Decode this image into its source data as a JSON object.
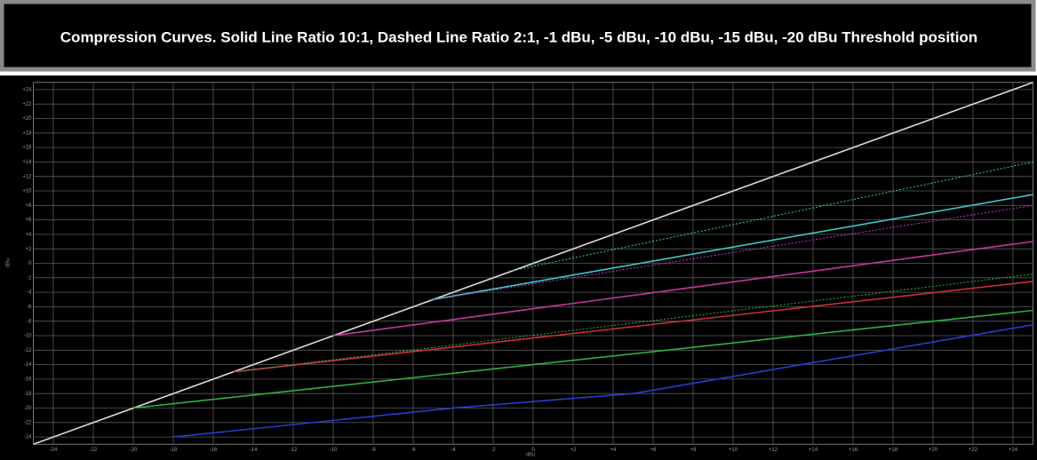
{
  "chart_data": {
    "type": "line",
    "title": "Compression Curves. Solid Line Ratio 10:1, Dashed Line Ratio 2:1, -1 dBu, -5 dBu, -10 dBu, -15 dBu, -20 dBu Threshold position",
    "x_label": "dBu",
    "y_label": "dBu",
    "xlim": [
      -25,
      25
    ],
    "ylim": [
      -25,
      25
    ],
    "grid": true,
    "xticks": [
      -24,
      -22,
      -20,
      -18,
      -16,
      -14,
      -12,
      -10,
      -8,
      -6,
      -4,
      -2,
      0,
      {
        "value": 2,
        "label": "+2"
      },
      {
        "value": 4,
        "label": "+4"
      },
      {
        "value": 6,
        "label": "+6"
      },
      {
        "value": 8,
        "label": "+8"
      },
      {
        "value": 10,
        "label": "+10"
      },
      {
        "value": 12,
        "label": "+12"
      },
      {
        "value": 14,
        "label": "+14"
      },
      {
        "value": 16,
        "label": "+16"
      },
      {
        "value": 18,
        "label": "+18"
      },
      {
        "value": 20,
        "label": "+20"
      },
      {
        "value": 22,
        "label": "+22"
      },
      {
        "value": 24,
        "label": "+24"
      }
    ],
    "yticks": [
      -24,
      -22,
      -20,
      -18,
      -16,
      -14,
      -12,
      -10,
      -8,
      -6,
      -4,
      -2,
      0,
      {
        "value": 2,
        "label": "+2"
      },
      {
        "value": 4,
        "label": "+4"
      },
      {
        "value": 6,
        "label": "+6"
      },
      {
        "value": 8,
        "label": "+8"
      },
      {
        "value": 10,
        "label": "+10"
      },
      {
        "value": 12,
        "label": "+12"
      },
      {
        "value": 14,
        "label": "+14"
      },
      {
        "value": 16,
        "label": "+16"
      },
      {
        "value": 18,
        "label": "+18"
      },
      {
        "value": 20,
        "label": "+20"
      },
      {
        "value": 22,
        "label": "+22"
      },
      {
        "value": 24,
        "label": "+24"
      }
    ],
    "series": [
      {
        "color": "#d8d8d8",
        "dashed": false,
        "x": [
          -25,
          25
        ],
        "values": [
          -25,
          25
        ]
      },
      {
        "color": "#3fc6c8",
        "dashed": true,
        "x": [
          -1,
          25
        ],
        "values": [
          -1,
          14
        ]
      },
      {
        "color": "#3fc6c8",
        "dashed": false,
        "x": [
          -5,
          25
        ],
        "values": [
          -5,
          9.5
        ]
      },
      {
        "color": "#c03ad0",
        "dashed": true,
        "x": [
          -5,
          25
        ],
        "values": [
          -5,
          8
        ]
      },
      {
        "color": "#c03ad0",
        "dashed": false,
        "x": [
          -10,
          25
        ],
        "values": [
          -10,
          3
        ]
      },
      {
        "color": "#d0303c",
        "dashed": true,
        "x": [
          -10,
          25
        ],
        "values": [
          -10,
          3
        ]
      },
      {
        "color": "#d0303c",
        "dashed": false,
        "x": [
          -15,
          25
        ],
        "values": [
          -15,
          -2.5
        ]
      },
      {
        "color": "#2fb040",
        "dashed": true,
        "x": [
          -15,
          25
        ],
        "values": [
          -15,
          -1.5
        ]
      },
      {
        "color": "#2fb040",
        "dashed": false,
        "x": [
          -20,
          25
        ],
        "values": [
          -20,
          -6.5
        ]
      },
      {
        "color": "#2a3cd0",
        "dashed": false,
        "x": [
          -18,
          -4,
          5,
          25
        ],
        "values": [
          -24,
          -20,
          -18,
          -8.5
        ]
      }
    ]
  }
}
